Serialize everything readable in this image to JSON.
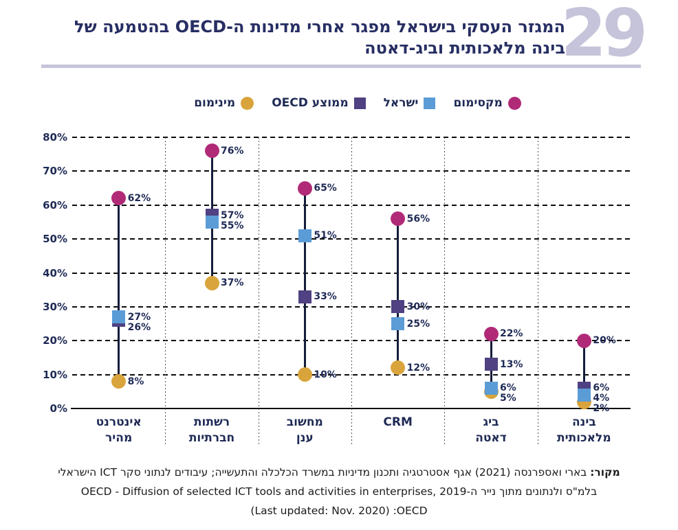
{
  "header": {
    "figure_number": "29",
    "title_line1": "המגזר העסקי בישראל מפגר אחרי מדינות ה-OECD בהטמעה של",
    "title_line2": "בינה מלאכותית וביג-דאטה"
  },
  "chart_data": {
    "type": "dot-range",
    "categories": [
      "אינטרנט מהיר",
      "רשתות חברתיות",
      "מחשוב ענן",
      "CRM",
      "ביג דאטה",
      "בינה מלאכותית"
    ],
    "series": [
      {
        "name": "מקסימום",
        "key": "maximum",
        "marker": "circle",
        "color": "#b12a78",
        "values": [
          62,
          76,
          65,
          56,
          22,
          20
        ]
      },
      {
        "name": "ישראל",
        "key": "israel",
        "marker": "square",
        "color": "#5b9cd7",
        "values": [
          27,
          55,
          51,
          25,
          6,
          4
        ]
      },
      {
        "name": "ממוצע OECD",
        "key": "oecd-average",
        "marker": "square",
        "color": "#4f4182",
        "values": [
          26,
          57,
          33,
          30,
          13,
          6
        ]
      },
      {
        "name": "מינימום",
        "key": "minimum",
        "marker": "circle",
        "color": "#d9a43b",
        "values": [
          8,
          37,
          10,
          12,
          5,
          2
        ]
      }
    ],
    "value_label_suffix": "%",
    "ylim": [
      0,
      80
    ],
    "ytick_step": 10,
    "ytick_suffix": "%",
    "grid": "horizontal-dashed",
    "legend_position": "top"
  },
  "footer": {
    "source_label": "מקור:",
    "line1": "בארי ואספרנסה (2021) אגף אסטרטגיה ותכנון מדיניות במשרד הכלכלה והתעשייה; עיבודים לנתוני סקר ICT הישראלי",
    "line2": "בלמ\"ס ולנתונים מתוך נייר ה-OECD - Diffusion of selected ICT tools and activities in enterprises, 2019",
    "line3": "(Last updated: Nov. 2020) :OECD"
  },
  "colors": {
    "title_navy": "#272e63",
    "text_navy": "#1f2a55",
    "accent_lavender": "#c6c4da",
    "stem_navy": "#141c3a",
    "maximum": "#b12a78",
    "israel": "#5b9cd7",
    "oecd_average": "#4f4182",
    "minimum": "#d9a43b"
  }
}
